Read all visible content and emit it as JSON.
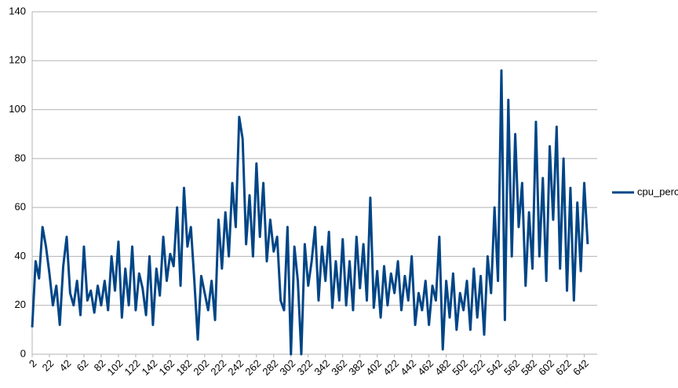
{
  "chart_data": {
    "type": "line",
    "x": [
      2,
      6,
      10,
      14,
      18,
      22,
      26,
      30,
      34,
      38,
      42,
      46,
      50,
      54,
      58,
      62,
      66,
      70,
      74,
      78,
      82,
      86,
      90,
      94,
      98,
      102,
      106,
      110,
      114,
      118,
      122,
      126,
      130,
      134,
      138,
      142,
      146,
      150,
      154,
      158,
      162,
      166,
      170,
      174,
      178,
      182,
      186,
      190,
      194,
      198,
      202,
      206,
      210,
      214,
      218,
      222,
      226,
      230,
      234,
      238,
      242,
      246,
      250,
      254,
      258,
      262,
      266,
      270,
      274,
      278,
      282,
      286,
      290,
      294,
      298,
      302,
      306,
      310,
      314,
      318,
      322,
      326,
      330,
      334,
      338,
      342,
      346,
      350,
      354,
      358,
      362,
      366,
      370,
      374,
      378,
      382,
      386,
      390,
      394,
      398,
      402,
      406,
      410,
      414,
      418,
      422,
      426,
      430,
      434,
      438,
      442,
      446,
      450,
      454,
      458,
      462,
      466,
      470,
      474,
      478,
      482,
      486,
      490,
      494,
      498,
      502,
      506,
      510,
      514,
      518,
      522,
      526,
      530,
      534,
      538,
      542,
      546,
      550,
      554,
      558,
      562,
      566,
      570,
      574,
      578,
      582,
      586,
      590,
      594,
      598,
      602,
      606,
      610,
      614,
      618,
      622,
      626,
      630,
      634,
      638,
      642,
      646
    ],
    "series": [
      {
        "name": "cpu_percent",
        "color": "#004586",
        "values": [
          11,
          38,
          31,
          52,
          44,
          33,
          20,
          28,
          12,
          36,
          48,
          25,
          20,
          30,
          16,
          44,
          22,
          26,
          17,
          28,
          20,
          30,
          18,
          40,
          26,
          46,
          15,
          35,
          20,
          44,
          18,
          33,
          27,
          16,
          40,
          12,
          35,
          24,
          48,
          30,
          41,
          36,
          60,
          28,
          68,
          44,
          52,
          30,
          6,
          32,
          25,
          18,
          30,
          14,
          55,
          35,
          58,
          40,
          70,
          52,
          97,
          88,
          45,
          65,
          40,
          78,
          48,
          70,
          38,
          55,
          42,
          48,
          22,
          18,
          52,
          0,
          44,
          30,
          0,
          45,
          28,
          38,
          52,
          22,
          44,
          30,
          50,
          19,
          38,
          22,
          47,
          20,
          38,
          18,
          48,
          27,
          45,
          22,
          64,
          19,
          34,
          15,
          36,
          20,
          33,
          25,
          38,
          18,
          32,
          22,
          40,
          12,
          25,
          18,
          30,
          12,
          28,
          22,
          48,
          2,
          30,
          15,
          33,
          10,
          25,
          18,
          30,
          10,
          35,
          15,
          32,
          8,
          40,
          25,
          60,
          30,
          116,
          14,
          104,
          40,
          90,
          52,
          70,
          28,
          58,
          35,
          95,
          40,
          72,
          30,
          85,
          55,
          93,
          35,
          80,
          26,
          68,
          22,
          62,
          34,
          70,
          45
        ]
      }
    ],
    "xlim": [
      2,
      657
    ],
    "xticks": [
      2,
      22,
      42,
      62,
      82,
      102,
      122,
      142,
      162,
      182,
      202,
      222,
      242,
      262,
      282,
      302,
      322,
      342,
      362,
      382,
      402,
      422,
      442,
      462,
      482,
      502,
      522,
      542,
      562,
      582,
      602,
      622,
      642
    ],
    "ylim": [
      0,
      140
    ],
    "yticks": [
      0,
      20,
      40,
      60,
      80,
      100,
      120,
      140
    ],
    "grid": true
  }
}
